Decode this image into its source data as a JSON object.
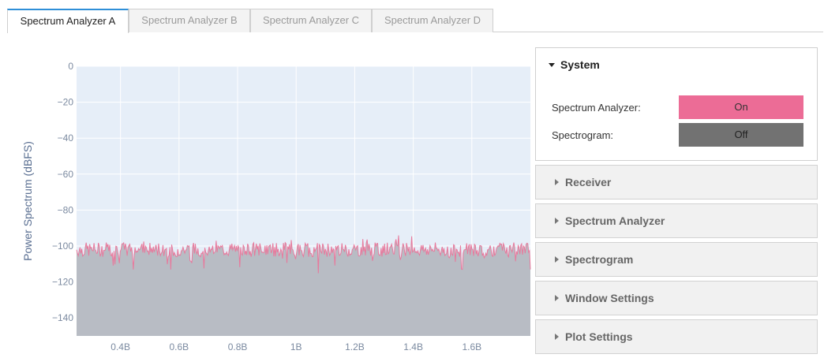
{
  "tabs": [
    {
      "label": "Spectrum Analyzer A",
      "active": true
    },
    {
      "label": "Spectrum Analyzer B",
      "active": false
    },
    {
      "label": "Spectrum Analyzer C",
      "active": false
    },
    {
      "label": "Spectrum Analyzer D",
      "active": false
    }
  ],
  "chart_data": {
    "type": "line",
    "ylabel": "Power Spectrum (dBFS)",
    "xlabel": "",
    "ylim": [
      -150,
      0
    ],
    "xlim": [
      0.25,
      1.8
    ],
    "x_ticks": [
      "0.4B",
      "0.6B",
      "0.8B",
      "1B",
      "1.2B",
      "1.4B",
      "1.6B"
    ],
    "x_tick_values": [
      0.4,
      0.6,
      0.8,
      1.0,
      1.2,
      1.4,
      1.6
    ],
    "y_ticks": [
      0,
      -20,
      -40,
      -60,
      -80,
      -100,
      -120,
      -140
    ],
    "noise_floor_dbfs": -102,
    "noise_spread_db": 8,
    "series_color": "#e8799c",
    "fill_color": "#b8bcc4",
    "plot_bg": "#e6eef8",
    "grid": true
  },
  "panel": {
    "system": {
      "title": "System",
      "spectrum_analyzer_label": "Spectrum Analyzer:",
      "spectrum_analyzer_value": "On",
      "spectrogram_label": "Spectrogram:",
      "spectrogram_value": "Off"
    },
    "sections": [
      "Receiver",
      "Spectrum Analyzer",
      "Spectrogram",
      "Window Settings",
      "Plot Settings"
    ]
  }
}
